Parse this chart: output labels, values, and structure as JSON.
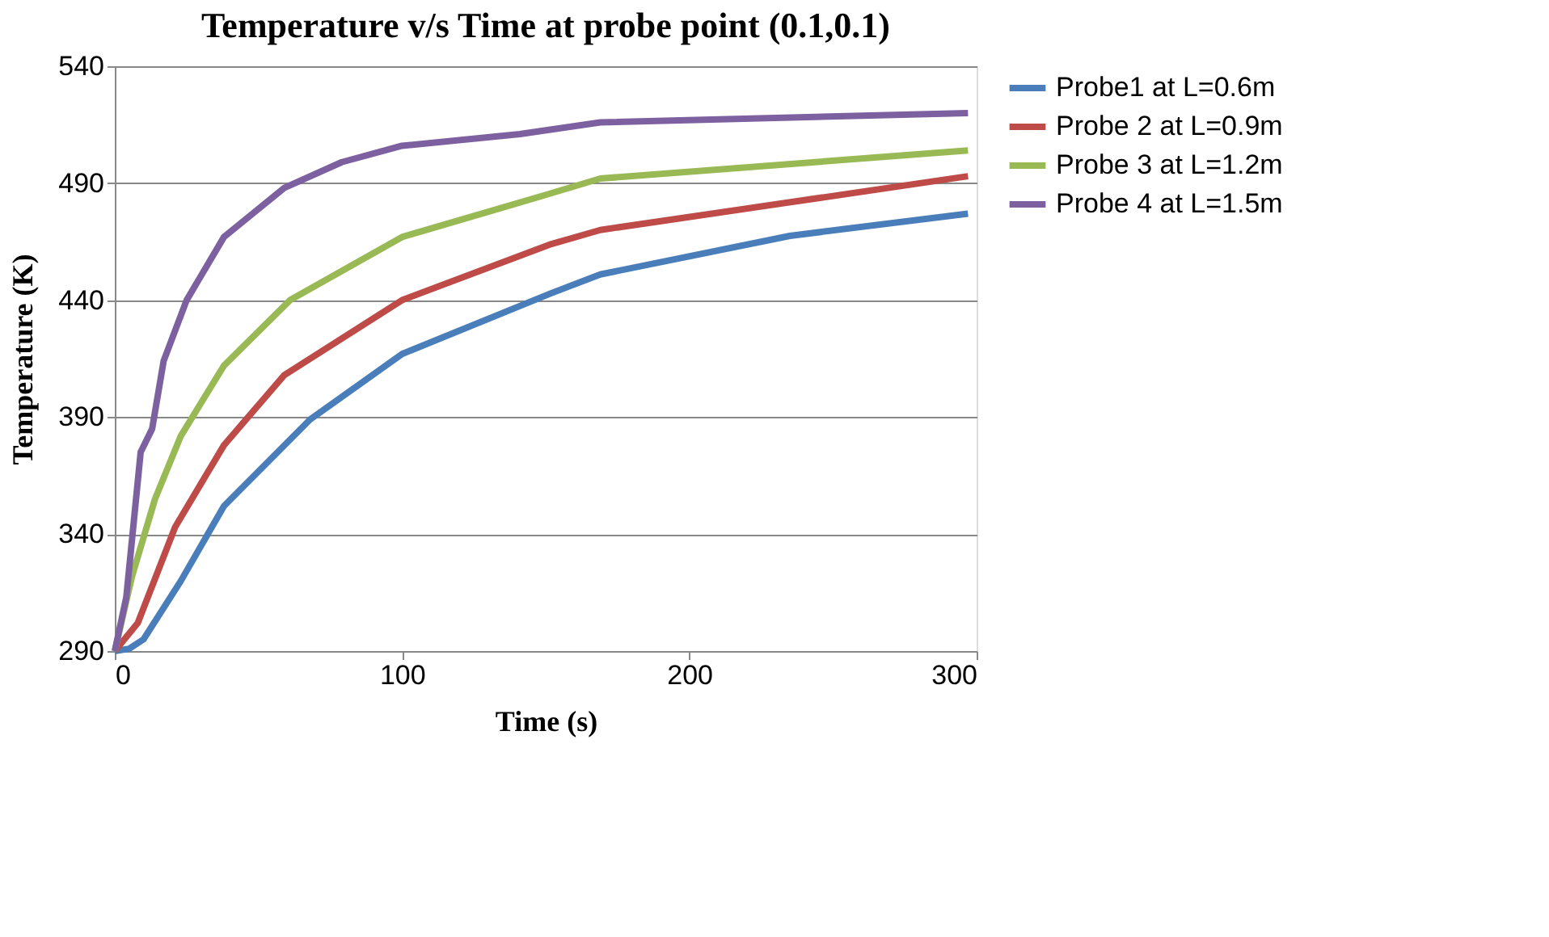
{
  "chart_data": {
    "type": "line",
    "title": "Temperature v/s Time at probe point (0.1,0.1)",
    "xlabel": "Time (s)",
    "ylabel": "Temperature (K)",
    "xlim": [
      0,
      300
    ],
    "xticks": [
      0,
      100,
      200,
      300
    ],
    "ylim": [
      290,
      540
    ],
    "yticks": [
      290,
      340,
      390,
      440,
      490,
      540
    ],
    "grid": "y",
    "legend": "right",
    "marker": "none",
    "line_style": "solid",
    "series": [
      {
        "name": "Probe1 at L=0.6m",
        "color": "#4a7ebb",
        "x": [
          0,
          5,
          10,
          23,
          38,
          68,
          100,
          152,
          169,
          235,
          297
        ],
        "values": [
          290,
          291,
          295,
          320,
          352,
          389,
          417,
          443,
          451,
          467.5,
          477
        ]
      },
      {
        "name": "Probe 2 at L=0.9m",
        "color": "#be4b48",
        "x": [
          0,
          8,
          21,
          38,
          59,
          100,
          152,
          169,
          297
        ],
        "values": [
          290,
          302,
          343,
          378,
          408,
          440,
          464,
          470,
          493
        ]
      },
      {
        "name": "Probe 3 at L=1.2m",
        "color": "#98b954",
        "x": [
          0,
          6,
          14,
          23,
          38,
          61,
          100,
          150,
          169,
          297
        ],
        "values": [
          290,
          322,
          355,
          382,
          412,
          440,
          467,
          485,
          492,
          504
        ]
      },
      {
        "name": "Probe 4 at L=1.5m",
        "color": "#7d60a0",
        "x": [
          0,
          4,
          9,
          13,
          17,
          25,
          38,
          59,
          79,
          100,
          141,
          169,
          297
        ],
        "values": [
          290,
          313,
          375,
          385,
          414,
          440,
          467,
          488,
          499,
          506,
          511,
          516,
          520
        ]
      }
    ]
  }
}
